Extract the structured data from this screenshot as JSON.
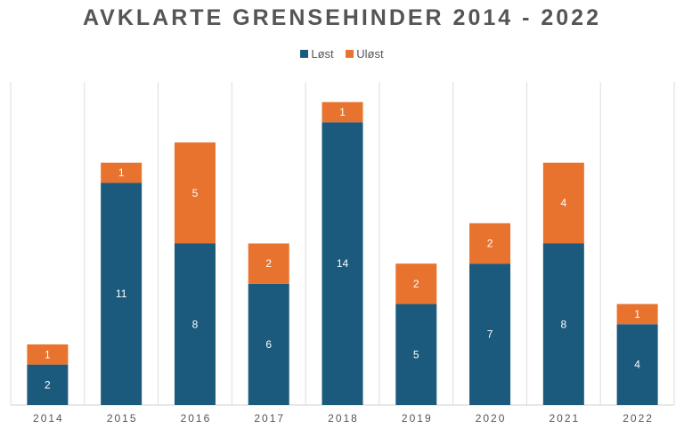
{
  "chart_data": {
    "type": "bar",
    "stacked": true,
    "title": "AVKLARTE GRENSEHINDER 2014 - 2022",
    "xlabel": "",
    "ylabel": "",
    "categories": [
      "2014",
      "2015",
      "2016",
      "2017",
      "2018",
      "2019",
      "2020",
      "2021",
      "2022"
    ],
    "series": [
      {
        "name": "Løst",
        "color": "#1b5a7d",
        "values": [
          2,
          11,
          8,
          6,
          14,
          5,
          7,
          8,
          4
        ]
      },
      {
        "name": "Uløst",
        "color": "#e8732f",
        "values": [
          1,
          1,
          5,
          2,
          1,
          2,
          2,
          4,
          1
        ]
      }
    ],
    "ylim": [
      0,
      16
    ],
    "grid": "vertical category separators",
    "legend": "top",
    "data_labels": true
  }
}
